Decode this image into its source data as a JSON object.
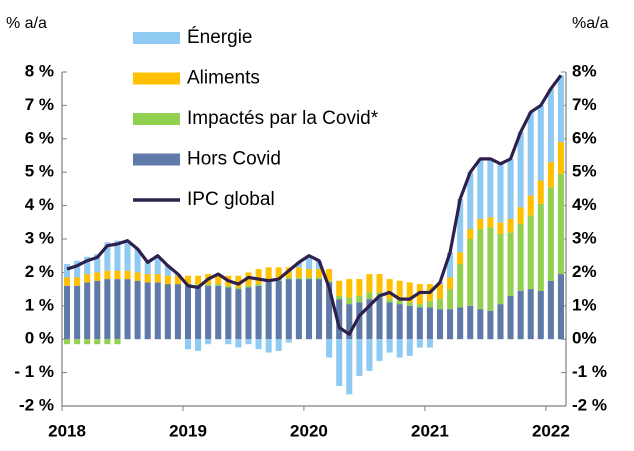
{
  "chart_data": {
    "type": "bar",
    "stacked": true,
    "y_label": "% a/a",
    "y2_label": "%a/a",
    "categories": [
      "2018",
      null,
      null,
      null,
      null,
      null,
      null,
      null,
      null,
      null,
      null,
      null,
      "2019",
      null,
      null,
      null,
      null,
      null,
      null,
      null,
      null,
      null,
      null,
      null,
      "2020",
      null,
      null,
      null,
      null,
      null,
      null,
      null,
      null,
      null,
      null,
      null,
      "2021",
      null,
      null,
      null,
      null,
      null,
      null,
      null,
      null,
      null,
      null,
      null,
      "2022",
      null
    ],
    "series": [
      {
        "name": "Énergie",
        "color": "#8fcaf3",
        "values": [
          0.4,
          0.5,
          0.52,
          0.55,
          0.85,
          0.9,
          0.9,
          0.7,
          0.35,
          0.55,
          0.3,
          0.05,
          -0.3,
          -0.35,
          -0.15,
          0,
          -0.15,
          -0.25,
          -0.15,
          -0.3,
          -0.4,
          -0.35,
          -0.1,
          0.15,
          0.4,
          0.25,
          -0.55,
          -1.4,
          -1.65,
          -1.1,
          -0.95,
          -0.65,
          -0.4,
          -0.55,
          -0.5,
          -0.25,
          -0.25,
          0.05,
          0.75,
          1.6,
          1.7,
          1.8,
          1.75,
          1.75,
          1.8,
          2.25,
          2.5,
          2.25,
          2.2,
          2.0
        ]
      },
      {
        "name": "Aliments",
        "color": "#ffc000",
        "values": [
          0.25,
          0.25,
          0.25,
          0.25,
          0.25,
          0.25,
          0.25,
          0.25,
          0.25,
          0.25,
          0.25,
          0.25,
          0.25,
          0.25,
          0.3,
          0.3,
          0.3,
          0.35,
          0.4,
          0.45,
          0.4,
          0.35,
          0.3,
          0.3,
          0.25,
          0.25,
          0.35,
          0.45,
          0.55,
          0.5,
          0.55,
          0.55,
          0.6,
          0.6,
          0.6,
          0.6,
          0.5,
          0.45,
          0.35,
          0.35,
          0.3,
          0.3,
          0.3,
          0.35,
          0.4,
          0.5,
          0.6,
          0.7,
          0.75,
          0.95
        ]
      },
      {
        "name": "Impactés par la Covid*",
        "color": "#92d050",
        "values": [
          -0.15,
          -0.15,
          -0.15,
          -0.15,
          -0.15,
          -0.15,
          0,
          0,
          0,
          0,
          0,
          0,
          0.05,
          0.05,
          0.05,
          0.05,
          0.05,
          0.05,
          0.05,
          0.05,
          0.05,
          0.05,
          0.05,
          0.05,
          0.05,
          0.05,
          0.05,
          0.1,
          0.2,
          0.2,
          0.2,
          0.15,
          0.1,
          0.1,
          0.1,
          0.1,
          0.2,
          0.3,
          0.6,
          1.3,
          2.0,
          2.4,
          2.5,
          2.1,
          1.9,
          2.0,
          2.2,
          2.6,
          2.8,
          3.0
        ]
      },
      {
        "name": "Hors Covid",
        "color": "#5f7aa8",
        "values": [
          1.6,
          1.6,
          1.7,
          1.75,
          1.8,
          1.8,
          1.8,
          1.75,
          1.7,
          1.7,
          1.65,
          1.65,
          1.6,
          1.6,
          1.6,
          1.6,
          1.55,
          1.5,
          1.55,
          1.6,
          1.7,
          1.75,
          1.8,
          1.8,
          1.8,
          1.8,
          1.7,
          1.2,
          1.05,
          1.1,
          1.2,
          1.25,
          1.1,
          1.05,
          1.0,
          0.95,
          0.95,
          0.9,
          0.9,
          0.95,
          1.0,
          0.9,
          0.85,
          1.05,
          1.3,
          1.45,
          1.5,
          1.45,
          1.75,
          1.95
        ]
      },
      {
        "name": "IPC global",
        "color": "#2e1f4d",
        "type": "line",
        "values": [
          2.1,
          2.2,
          2.35,
          2.45,
          2.8,
          2.85,
          2.95,
          2.7,
          2.3,
          2.5,
          2.2,
          1.95,
          1.6,
          1.55,
          1.8,
          1.95,
          1.75,
          1.65,
          1.85,
          1.8,
          1.75,
          1.8,
          2.05,
          2.3,
          2.5,
          2.35,
          1.55,
          0.35,
          0.15,
          0.7,
          1.0,
          1.3,
          1.4,
          1.2,
          1.2,
          1.4,
          1.4,
          1.7,
          2.6,
          4.2,
          5.0,
          5.4,
          5.4,
          5.25,
          5.4,
          6.2,
          6.8,
          7.0,
          7.5,
          7.9
        ]
      }
    ],
    "ylim": [
      -2,
      8
    ],
    "yticks": [
      {
        "value": 8,
        "label": "8 %"
      },
      {
        "value": 7,
        "label": "7 %"
      },
      {
        "value": 6,
        "label": "6 %"
      },
      {
        "value": 5,
        "label": "5 %"
      },
      {
        "value": 4,
        "label": "4 %"
      },
      {
        "value": 3,
        "label": "3 %"
      },
      {
        "value": 2,
        "label": "2 %"
      },
      {
        "value": 1,
        "label": "1 %"
      },
      {
        "value": 0,
        "label": "0 %"
      },
      {
        "value": -1,
        "label": "- 1 %"
      },
      {
        "value": -2,
        "label": "-2 %"
      }
    ],
    "y2lim": [
      -2,
      8
    ],
    "y2ticks": [
      {
        "value": 8,
        "label": "8%"
      },
      {
        "value": 7,
        "label": "7%"
      },
      {
        "value": 6,
        "label": "6%"
      },
      {
        "value": 5,
        "label": "5%"
      },
      {
        "value": 4,
        "label": "4%"
      },
      {
        "value": 3,
        "label": "3%"
      },
      {
        "value": 2,
        "label": "2%"
      },
      {
        "value": 1,
        "label": "1%"
      },
      {
        "value": 0,
        "label": "0%"
      },
      {
        "value": -1,
        "label": "-1 %"
      },
      {
        "value": -2,
        "label": "-2 %"
      }
    ],
    "legend": "top-left"
  }
}
